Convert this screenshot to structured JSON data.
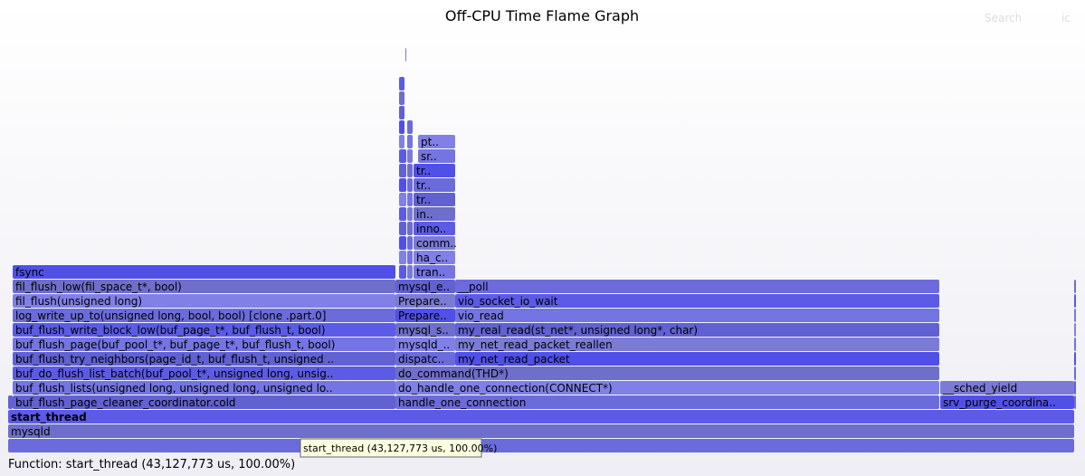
{
  "title": "Off-CPU Time Flame Graph",
  "search": "Search",
  "ignorecase": "ic",
  "frames": [
    "start_thread",
    "mysqld",
    "buf_flush_page_cleaner_coordinator.cold",
    "handle_one_connection",
    "srv_purge_coordina..",
    "buf_flush_lists(unsigned long, unsigned long, unsigned lo..",
    "do_handle_one_connection(CONNECT*)",
    "__sched_yield",
    "buf_do_flush_list_batch(buf_pool_t*, unsigned long, unsig..",
    "do_command(THD*)",
    "buf_flush_try_neighbors(page_id_t, buf_flush_t, unsigned ..",
    "dispatc..",
    "my_net_read_packet",
    "buf_flush_page(buf_pool_t*, buf_page_t*, buf_flush_t, bool)",
    "mysqld_..",
    "my_net_read_packet_reallen",
    "buf_flush_write_block_low(buf_page_t*, buf_flush_t, bool)",
    "mysql_s..",
    "my_real_read(st_net*, unsigned long*, char)",
    "log_write_up_to(unsigned long, bool, bool) [clone .part.0]",
    "Prepare..",
    "vio_read",
    "fil_flush(unsigned long)",
    "Prepare..",
    "vio_socket_io_wait",
    "fil_flush_low(fil_space_t*, bool)",
    "mysql_e..",
    "__poll",
    "fsync",
    "tran..",
    "ha_c..",
    "comm..",
    "inno..",
    "in..",
    "tr..",
    "tr..",
    "tr..",
    "sr..",
    "pt.."
  ],
  "tooltip": "start_thread (43,127,773 us, 100.00%)",
  "status": "Function: start_thread (43,127,773 us, 100.00%)"
}
